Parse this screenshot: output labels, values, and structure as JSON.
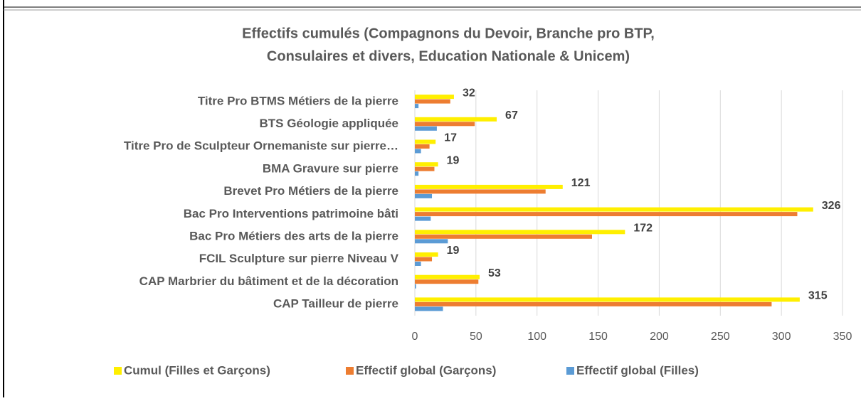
{
  "chart_data": {
    "type": "hbar",
    "title": [
      "Effectifs cumulés  (Compagnons du Devoir,  Branche pro BTP,",
      "Consulaires et divers, Education Nationale & Unicem)"
    ],
    "categories": [
      "Titre Pro BTMS Métiers de la pierre",
      "BTS Géologie appliquée",
      "Titre Pro de Sculpteur Ornemaniste sur pierre…",
      "BMA Gravure sur pierre",
      "Brevet Pro Métiers de la pierre",
      "Bac Pro Interventions patrimoine bâti",
      "Bac Pro Métiers des arts de la pierre",
      "FCIL Sculpture sur pierre Niveau V",
      "CAP Marbrier du bâtiment et de la décoration",
      "CAP Tailleur de pierre"
    ],
    "series": [
      {
        "name": "Cumul (Filles et Garçons)",
        "color": "#ffef00",
        "values": [
          32,
          67,
          17,
          19,
          121,
          326,
          172,
          19,
          53,
          315
        ],
        "labels": true
      },
      {
        "name": "Effectif global  (Garçons)",
        "color": "#ed7d31",
        "values": [
          29,
          49,
          12,
          16,
          107,
          313,
          145,
          14,
          52,
          292
        ]
      },
      {
        "name": "Effectif global (Filles)",
        "color": "#5b9bd5",
        "values": [
          3,
          18,
          5,
          3,
          14,
          13,
          27,
          5,
          1,
          23
        ]
      }
    ],
    "xlim": [
      0,
      350
    ],
    "xticks": [
      0,
      50,
      100,
      150,
      200,
      250,
      300,
      350
    ],
    "grid": true,
    "legend": "bottom"
  }
}
